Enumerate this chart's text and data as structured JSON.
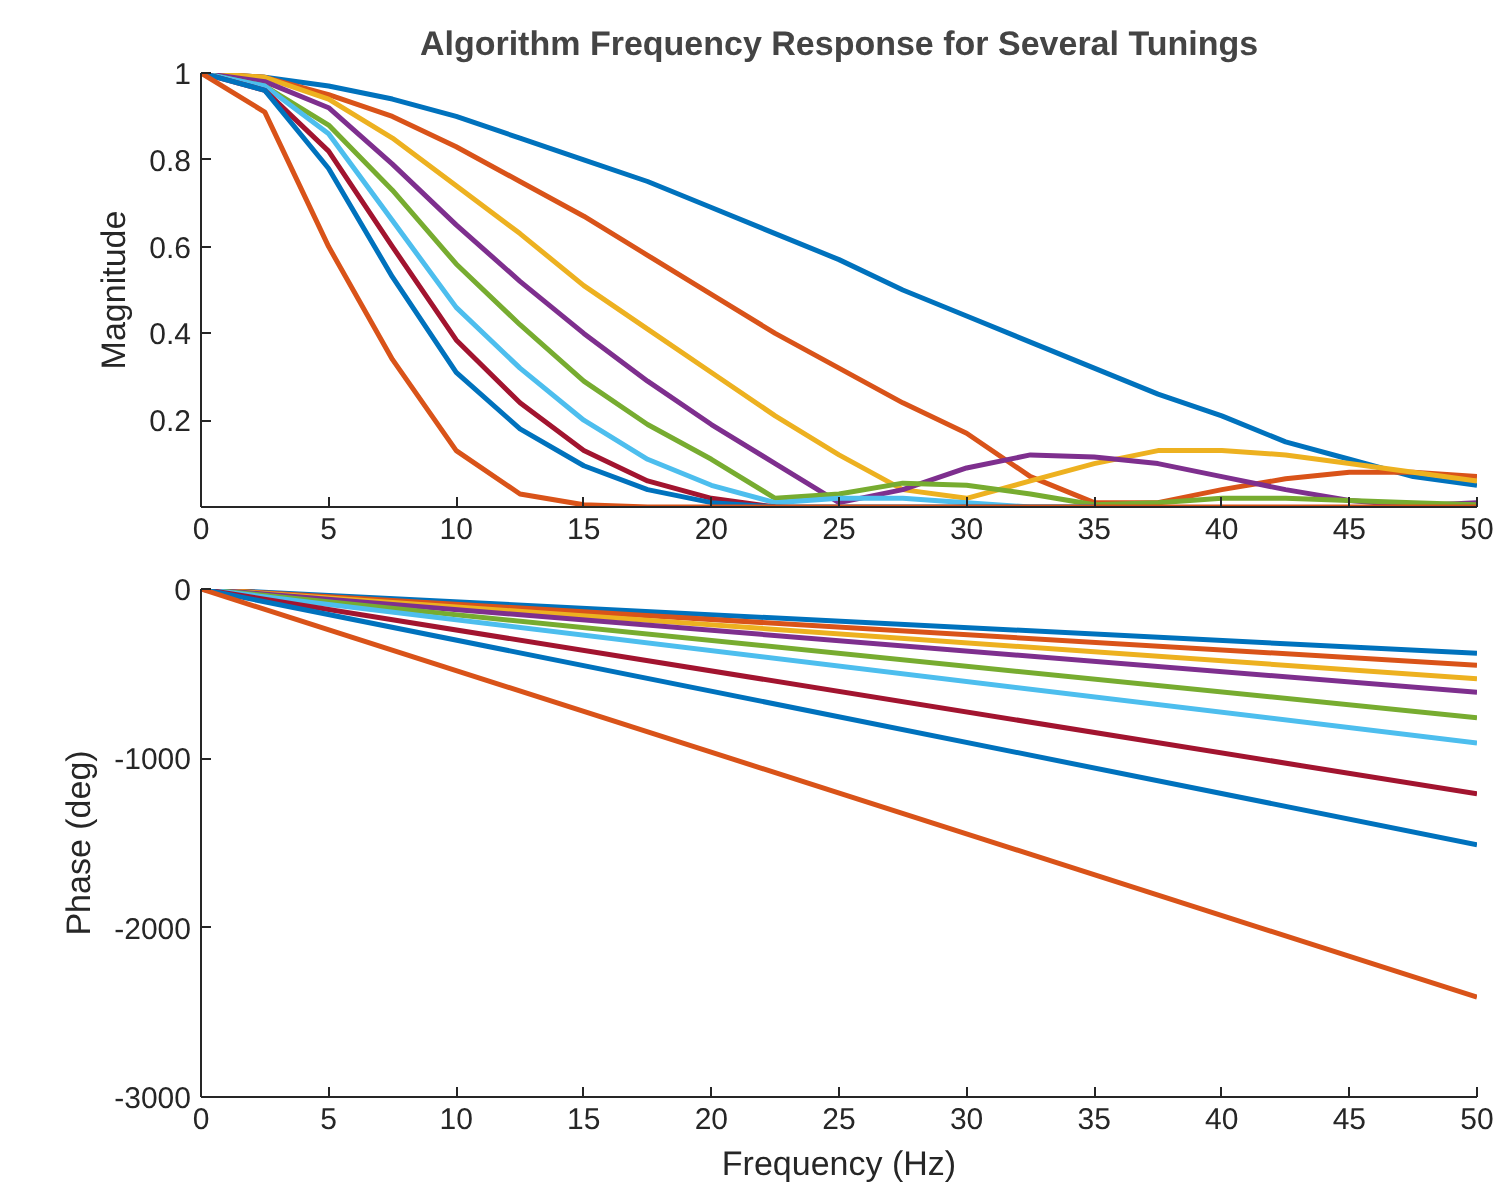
{
  "chart_data": [
    {
      "type": "line",
      "title": "Algorithm Frequency Response for Several Tunings",
      "ylabel": "Magnitude",
      "xlim": [
        0,
        50
      ],
      "xticks": [
        0,
        5,
        10,
        15,
        20,
        25,
        30,
        35,
        40,
        45,
        50
      ],
      "ylim": [
        0,
        1
      ],
      "yticks": [
        0.2,
        0.4,
        0.6,
        0.8,
        1
      ],
      "grid": false,
      "x": [
        0,
        2.5,
        5,
        7.5,
        10,
        12.5,
        15,
        17.5,
        20,
        22.5,
        25,
        27.5,
        30,
        32.5,
        35,
        37.5,
        40,
        42.5,
        45,
        47.5,
        50
      ],
      "series": [
        {
          "color": "#0072bd",
          "values": [
            1,
            0.99,
            0.97,
            0.94,
            0.9,
            0.85,
            0.8,
            0.75,
            0.69,
            0.63,
            0.57,
            0.5,
            0.44,
            0.38,
            0.32,
            0.26,
            0.21,
            0.15,
            0.11,
            0.07,
            0.05
          ]
        },
        {
          "color": "#d95319",
          "values": [
            1,
            0.99,
            0.95,
            0.9,
            0.83,
            0.75,
            0.67,
            0.58,
            0.49,
            0.4,
            0.32,
            0.24,
            0.17,
            0.07,
            0.01,
            0.01,
            0.04,
            0.065,
            0.08,
            0.08,
            0.07
          ]
        },
        {
          "color": "#edb120",
          "values": [
            1,
            0.99,
            0.94,
            0.85,
            0.74,
            0.63,
            0.51,
            0.41,
            0.31,
            0.21,
            0.12,
            0.04,
            0.02,
            0.06,
            0.1,
            0.13,
            0.13,
            0.12,
            0.1,
            0.08,
            0.06
          ]
        },
        {
          "color": "#7e2f8e",
          "values": [
            1,
            0.98,
            0.92,
            0.79,
            0.65,
            0.52,
            0.4,
            0.29,
            0.19,
            0.1,
            0.01,
            0.04,
            0.09,
            0.12,
            0.115,
            0.1,
            0.07,
            0.04,
            0.015,
            0.003,
            0.01
          ]
        },
        {
          "color": "#77ac30",
          "values": [
            1,
            0.97,
            0.88,
            0.73,
            0.56,
            0.42,
            0.29,
            0.19,
            0.11,
            0.02,
            0.03,
            0.055,
            0.05,
            0.03,
            0.005,
            0.01,
            0.02,
            0.02,
            0.015,
            0.01,
            0.005
          ]
        },
        {
          "color": "#4dbeee",
          "values": [
            1,
            0.97,
            0.86,
            0.66,
            0.46,
            0.32,
            0.2,
            0.11,
            0.05,
            0.01,
            0.02,
            0.02,
            0.01,
            0,
            0,
            null,
            null,
            null,
            null,
            null,
            null
          ]
        },
        {
          "color": "#a2142f",
          "values": [
            1,
            0.96,
            0.82,
            0.6,
            0.385,
            0.24,
            0.13,
            0.06,
            0.02,
            0,
            null,
            null,
            null,
            null,
            null,
            null,
            null,
            null,
            null,
            null,
            null
          ]
        },
        {
          "color": "#0072bd",
          "values": [
            1,
            0.96,
            0.78,
            0.53,
            0.31,
            0.18,
            0.095,
            0.04,
            0.01,
            0,
            0,
            0,
            0,
            0,
            0,
            null,
            null,
            null,
            null,
            null,
            null
          ]
        },
        {
          "color": "#d95319",
          "values": [
            1,
            0.91,
            0.6,
            0.34,
            0.13,
            0.03,
            0.005,
            0,
            0,
            0,
            0,
            0,
            0,
            0,
            0,
            0,
            0,
            0,
            0,
            0,
            0
          ]
        }
      ]
    },
    {
      "type": "line",
      "xlabel": "Frequency (Hz)",
      "ylabel": "Phase (deg)",
      "xlim": [
        0,
        50
      ],
      "xticks": [
        0,
        5,
        10,
        15,
        20,
        25,
        30,
        35,
        40,
        45,
        50
      ],
      "ylim": [
        -3000,
        0
      ],
      "yticks": [
        -3000,
        -2000,
        -1000,
        0
      ],
      "grid": false,
      "x": [
        0,
        50
      ],
      "series": [
        {
          "color": "#0072bd",
          "values": [
            0,
            -380
          ]
        },
        {
          "color": "#d95319",
          "values": [
            0,
            -450
          ]
        },
        {
          "color": "#edb120",
          "values": [
            0,
            -530
          ]
        },
        {
          "color": "#7e2f8e",
          "values": [
            0,
            -610
          ]
        },
        {
          "color": "#77ac30",
          "values": [
            0,
            -760
          ]
        },
        {
          "color": "#4dbeee",
          "values": [
            0,
            -910
          ]
        },
        {
          "color": "#a2142f",
          "values": [
            0,
            -1210
          ]
        },
        {
          "color": "#0072bd",
          "values": [
            0,
            -1510
          ]
        },
        {
          "color": "#d95319",
          "values": [
            0,
            -2410
          ]
        }
      ]
    }
  ]
}
